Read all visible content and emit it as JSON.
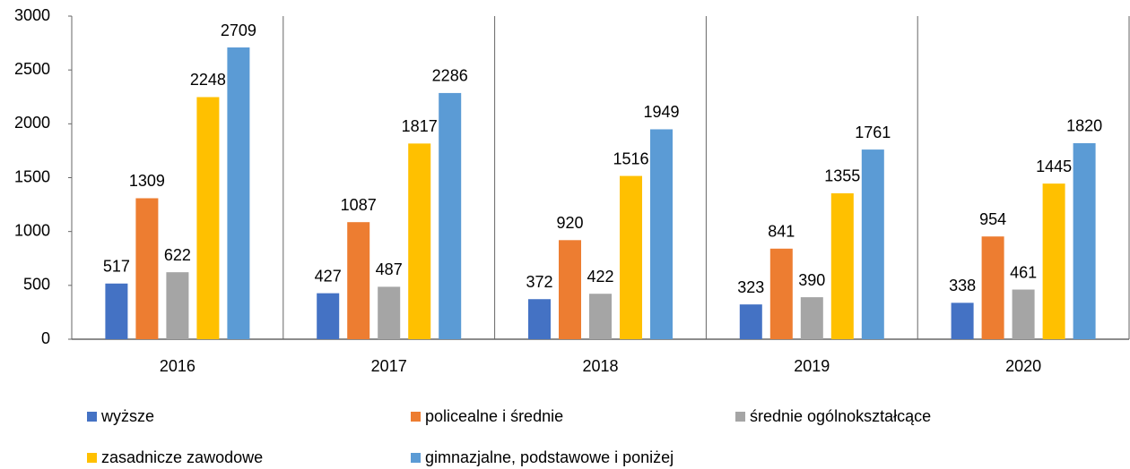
{
  "chart_data": {
    "type": "bar",
    "categories": [
      "2016",
      "2017",
      "2018",
      "2019",
      "2020"
    ],
    "series": [
      {
        "name": "wyższe",
        "color": "#4472c4",
        "values": [
          517,
          427,
          372,
          323,
          338
        ]
      },
      {
        "name": "policealne i średnie",
        "color": "#ed7d31",
        "values": [
          1309,
          1087,
          920,
          841,
          954
        ]
      },
      {
        "name": "średnie ogólnokształcące",
        "color": "#a5a5a5",
        "values": [
          622,
          487,
          422,
          390,
          461
        ]
      },
      {
        "name": "zasadnicze zawodowe",
        "color": "#ffc000",
        "values": [
          2248,
          1817,
          1516,
          1355,
          1445
        ]
      },
      {
        "name": "gimnazjalne, podstawowe i poniżej",
        "color": "#5b9bd5",
        "values": [
          2709,
          2286,
          1949,
          1761,
          1820
        ]
      }
    ],
    "ylim": [
      0,
      3000
    ],
    "yticks": [
      0,
      500,
      1000,
      1500,
      2000,
      2500,
      3000
    ],
    "legend": "bottom"
  }
}
